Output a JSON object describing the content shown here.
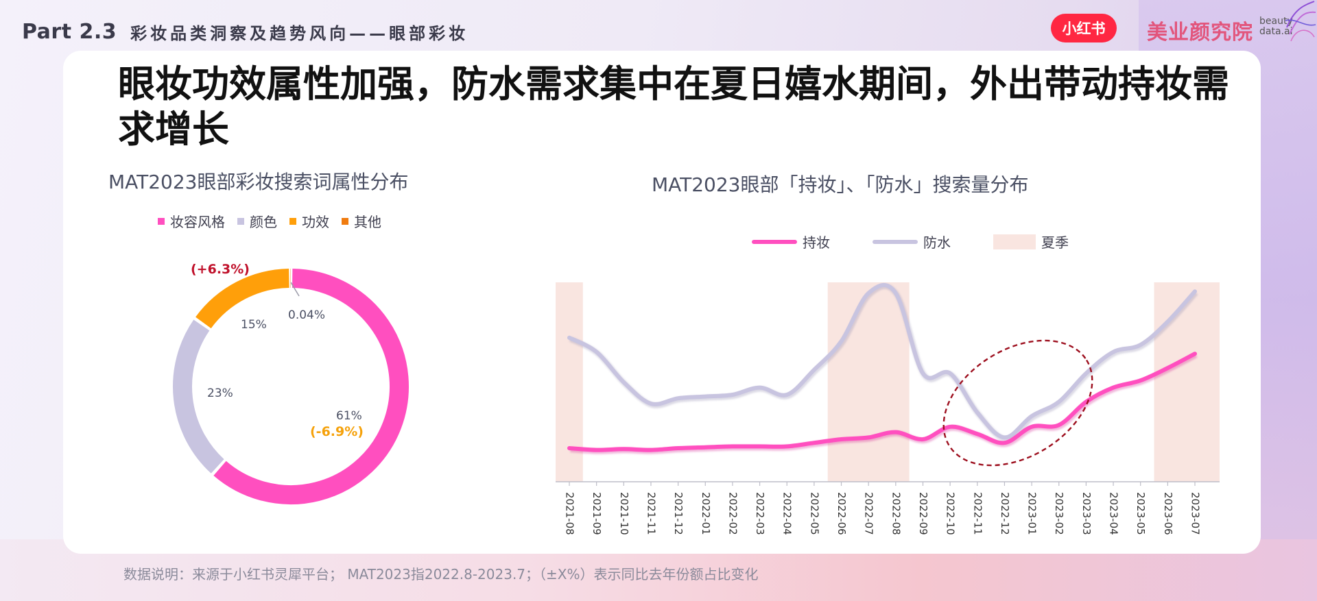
{
  "header": {
    "part": "Part 2.3",
    "subtitle": "彩妆品类洞察及趋势风向——眼部彩妆",
    "brand_pill": "小红书",
    "brand_name": "美业颜究院",
    "brand_en_1": "beauty",
    "brand_en_2": "data.ai"
  },
  "headline": "眼妆功效属性加强，防水需求集中在夏日嬉水期间，外出带动持妆需求增长",
  "footnote": "数据说明：来源于小红书灵犀平台；  MAT2023指2022.8-2023.7；（±X%）表示同比去年份额占比变化",
  "colors": {
    "accent_pink": "#ff4fbf",
    "lavender": "#c8c4e0",
    "orange": "#ff9f0a",
    "dark_orange": "#f07c10",
    "summer_band": "#f9e5e0",
    "annotation_red": "#c0102a",
    "annotation_orange": "#f5a10a",
    "brand_red": "#ff2742"
  },
  "chart_data": [
    {
      "type": "pie",
      "donut": true,
      "title": "MAT2023眼部彩妆搜索词属性分布",
      "legend_position": "top",
      "series": [
        {
          "name": "妆容风格",
          "value": 61,
          "label": "61%",
          "color": "#ff4fbf"
        },
        {
          "name": "颜色",
          "value": 23,
          "label": "23%",
          "color": "#c8c4e0"
        },
        {
          "name": "功效",
          "value": 15,
          "label": "15%",
          "color": "#ff9f0a"
        },
        {
          "name": "其他",
          "value": 0.04,
          "label": "0.04%",
          "color": "#f07c10"
        }
      ],
      "annotations": [
        {
          "target": "功效",
          "text": "(+6.3%)",
          "color": "#c0102a"
        },
        {
          "target": "妆容风格",
          "text": "(-6.9%)",
          "color": "#f5a10a"
        }
      ]
    },
    {
      "type": "line",
      "title": "MAT2023眼部「持妆」、「防水」搜索量分布",
      "legend_position": "top",
      "x": [
        "2021-08",
        "2021-09",
        "2021-10",
        "2021-11",
        "2021-12",
        "2022-01",
        "2022-02",
        "2022-03",
        "2022-04",
        "2022-05",
        "2022-06",
        "2022-07",
        "2022-08",
        "2022-09",
        "2022-10",
        "2022-11",
        "2022-12",
        "2023-01",
        "2023-02",
        "2023-03",
        "2023-04",
        "2023-05",
        "2023-06",
        "2023-07"
      ],
      "y_axis_shown": false,
      "ylim": [
        0,
        100
      ],
      "series": [
        {
          "name": "持妆",
          "color": "#ff4fbf",
          "values": [
            10,
            9,
            9.5,
            9,
            10,
            10.5,
            11,
            11,
            11,
            13,
            15,
            16,
            19,
            15,
            22,
            18,
            13,
            22,
            23,
            36,
            44,
            48,
            55,
            63
          ]
        },
        {
          "name": "防水",
          "color": "#c8c4e0",
          "values": [
            72,
            64,
            47,
            35,
            38,
            39,
            40,
            44,
            40,
            54,
            70,
            97,
            97,
            52,
            52,
            30,
            16,
            28,
            36,
            52,
            64,
            68,
            81,
            98
          ]
        }
      ],
      "shaded_regions": {
        "name": "夏季",
        "color": "#f9e5e0",
        "ranges": [
          [
            "2021-08",
            "2021-08"
          ],
          [
            "2022-06",
            "2022-08"
          ],
          [
            "2023-06",
            "2023-07"
          ]
        ]
      },
      "highlight": {
        "shape": "dashed-ellipse",
        "range": [
          "2022-12",
          "2023-07"
        ]
      }
    }
  ]
}
